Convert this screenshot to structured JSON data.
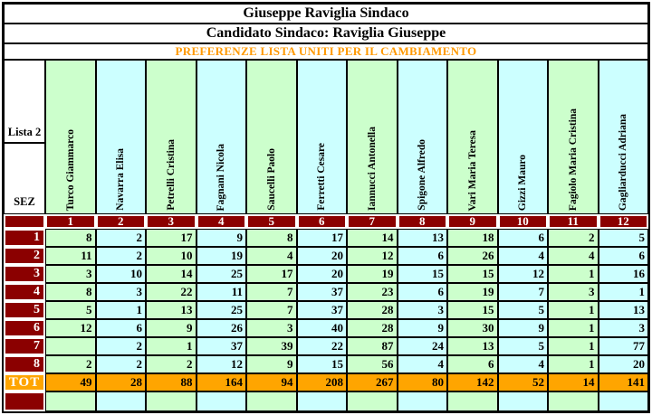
{
  "header": {
    "title": "Giuseppe Raviglia Sindaco",
    "subtitle": "Candidato Sindaco: Raviglia Giuseppe",
    "list_title": "PREFERENZE LISTA UNITI PER IL CAMBIAMENTO"
  },
  "left_panel": {
    "lista_label": "Lista 2",
    "sez_label": "SEZ",
    "tot_label": "TOT"
  },
  "candidates": [
    {
      "number": "1",
      "name": "Turco Giammarco"
    },
    {
      "number": "2",
      "name": "Navarra Elisa"
    },
    {
      "number": "3",
      "name": "Petrelli Cristina"
    },
    {
      "number": "4",
      "name": "Fagnani Nicola"
    },
    {
      "number": "5",
      "name": "Saucelli Paolo"
    },
    {
      "number": "6",
      "name": "Ferretti Cesare"
    },
    {
      "number": "7",
      "name": "Iannucci Antonella"
    },
    {
      "number": "8",
      "name": "Spigone Alfredo"
    },
    {
      "number": "9",
      "name": "Vari Maria Teresa"
    },
    {
      "number": "10",
      "name": "Gizzi Mauro"
    },
    {
      "number": "11",
      "name": "Fagiolo Maria Cristina"
    },
    {
      "number": "12",
      "name": "Gagliarducci Adriana"
    }
  ],
  "rows": [
    {
      "sez": "1",
      "values": [
        "8",
        "2",
        "17",
        "9",
        "8",
        "17",
        "14",
        "13",
        "18",
        "6",
        "2",
        "5"
      ]
    },
    {
      "sez": "2",
      "values": [
        "11",
        "2",
        "10",
        "19",
        "4",
        "20",
        "12",
        "6",
        "26",
        "4",
        "4",
        "6"
      ]
    },
    {
      "sez": "3",
      "values": [
        "3",
        "10",
        "14",
        "25",
        "17",
        "20",
        "19",
        "15",
        "15",
        "12",
        "1",
        "16"
      ]
    },
    {
      "sez": "4",
      "values": [
        "8",
        "3",
        "22",
        "11",
        "7",
        "37",
        "23",
        "6",
        "19",
        "7",
        "3",
        "1"
      ]
    },
    {
      "sez": "5",
      "values": [
        "5",
        "1",
        "13",
        "25",
        "7",
        "37",
        "28",
        "3",
        "15",
        "5",
        "1",
        "13"
      ]
    },
    {
      "sez": "6",
      "values": [
        "12",
        "6",
        "9",
        "26",
        "3",
        "40",
        "28",
        "9",
        "30",
        "9",
        "1",
        "3"
      ]
    },
    {
      "sez": "7",
      "values": [
        "",
        "2",
        "1",
        "37",
        "39",
        "22",
        "87",
        "24",
        "13",
        "5",
        "1",
        "77"
      ]
    },
    {
      "sez": "8",
      "values": [
        "2",
        "2",
        "2",
        "12",
        "9",
        "15",
        "56",
        "4",
        "6",
        "4",
        "1",
        "20"
      ]
    }
  ],
  "totals": [
    "49",
    "28",
    "88",
    "164",
    "94",
    "208",
    "267",
    "80",
    "142",
    "52",
    "14",
    "141"
  ],
  "colors": {
    "maroon": "#8B0000",
    "light_green": "#CCFFCC",
    "light_cyan": "#CCFFFF",
    "orange_fill": "#FFA500",
    "title_orange_text": "#FF9900",
    "border_black": "#000000"
  }
}
